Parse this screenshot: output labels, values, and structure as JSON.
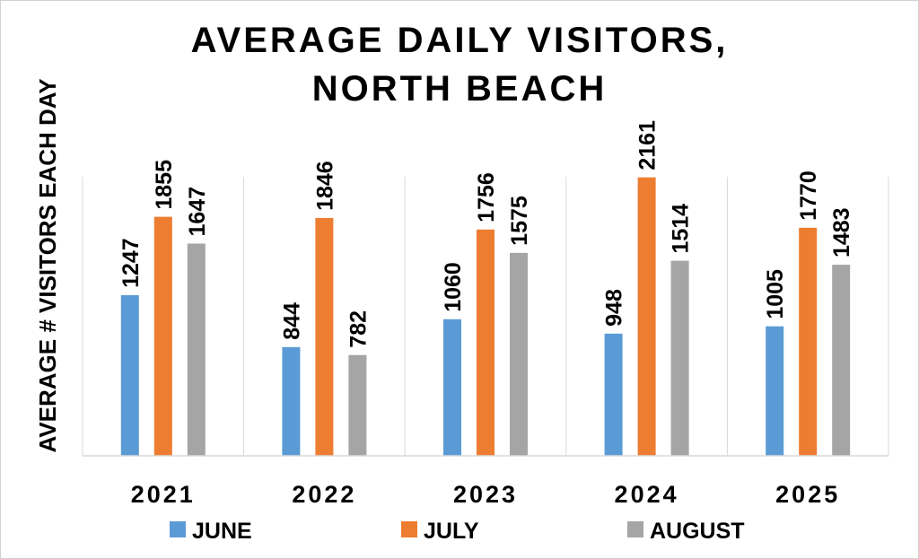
{
  "chart_data": {
    "type": "bar",
    "title": [
      "AVERAGE DAILY VISITORS,",
      "NORTH BEACH"
    ],
    "xlabel": "",
    "ylabel": "AVERAGE # VISITORS EACH DAY",
    "categories": [
      "2021",
      "2022",
      "2023",
      "2024",
      "2025"
    ],
    "series": [
      {
        "name": "JUNE",
        "color": "#5b9bd5",
        "values": [
          1247,
          844,
          1060,
          948,
          1005
        ]
      },
      {
        "name": "JULY",
        "color": "#ed7d31",
        "values": [
          1855,
          1846,
          1756,
          2161,
          1770
        ]
      },
      {
        "name": "AUGUST",
        "color": "#a5a5a5",
        "values": [
          1647,
          782,
          1575,
          1514,
          1483
        ]
      }
    ],
    "ylim": [
      0,
      2500
    ],
    "grid": false,
    "legend": "bottom",
    "data_labels": true
  }
}
